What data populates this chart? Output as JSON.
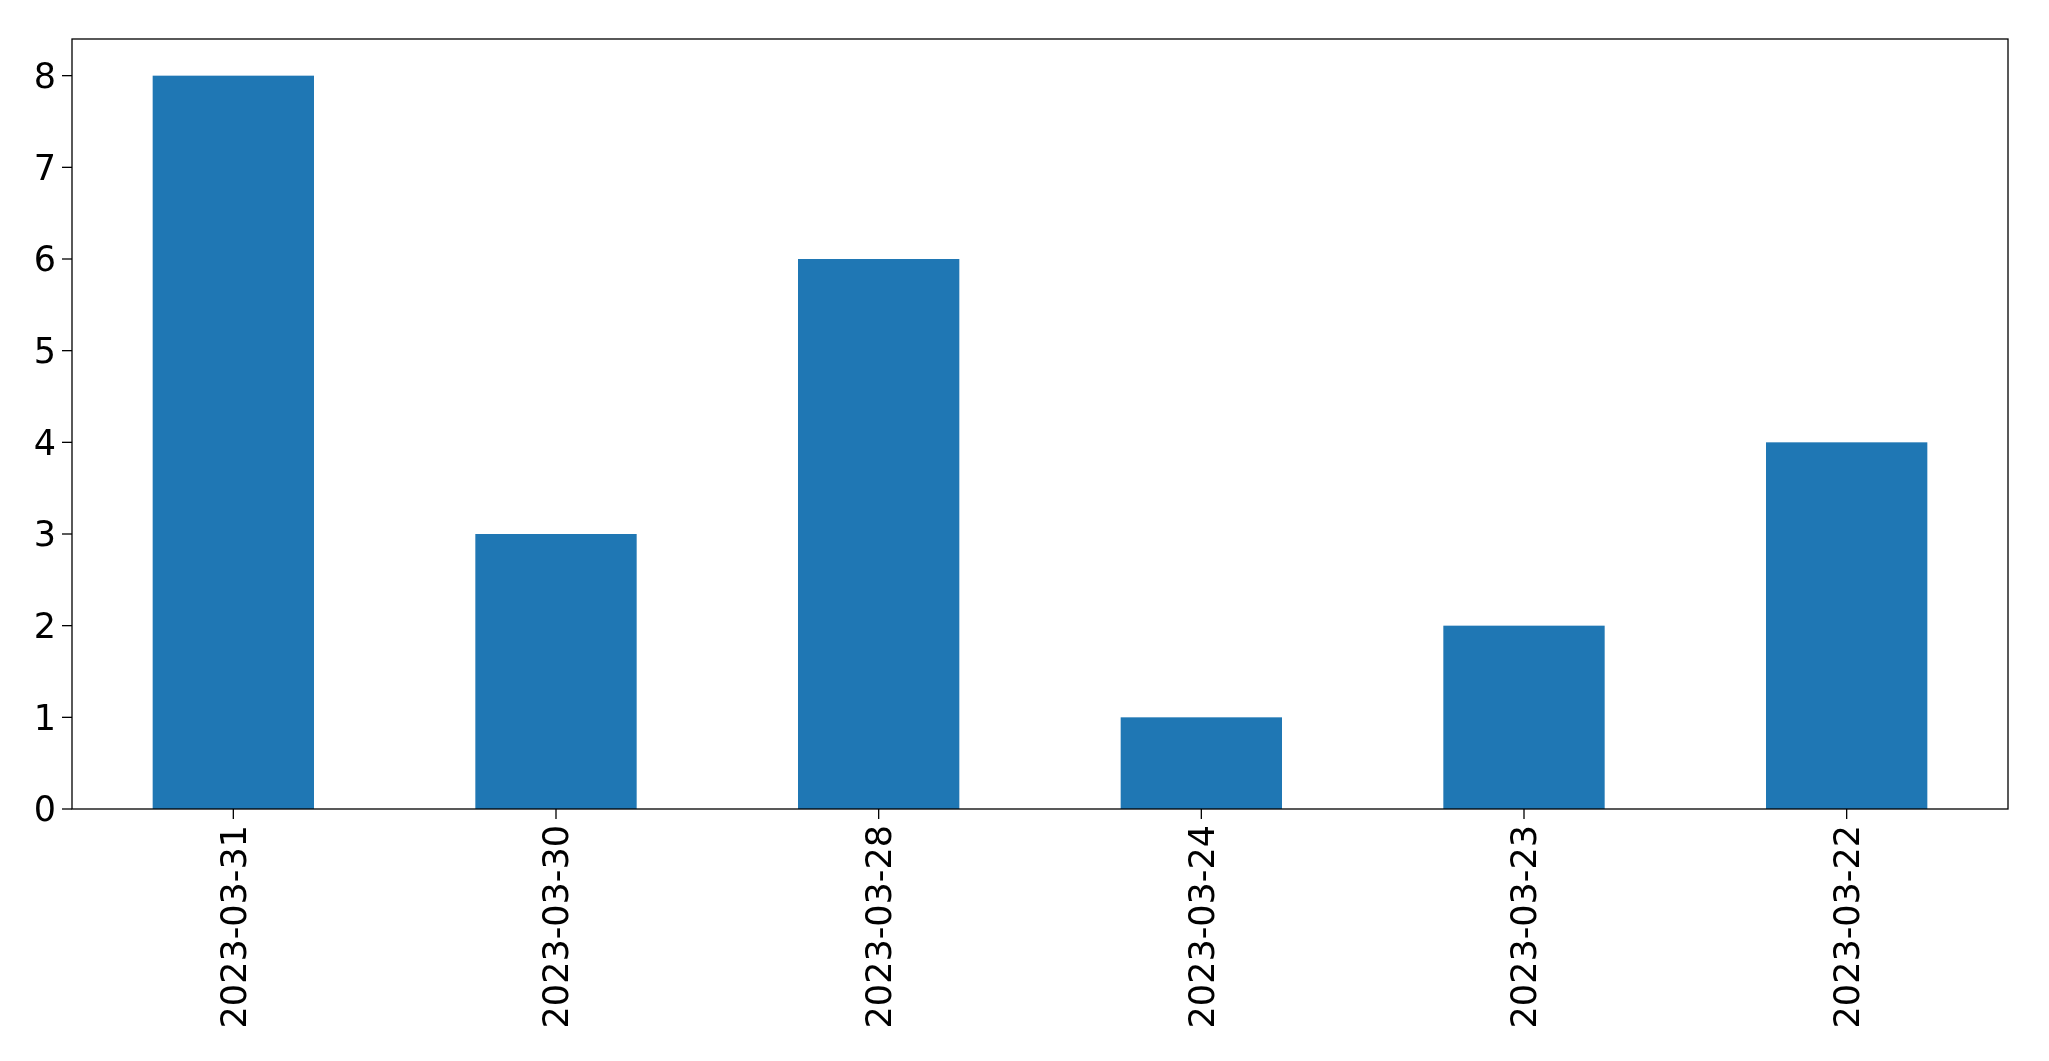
{
  "chart_data": {
    "type": "bar",
    "categories": [
      "2023-03-31",
      "2023-03-30",
      "2023-03-28",
      "2023-03-24",
      "2023-03-23",
      "2023-03-22"
    ],
    "values": [
      8,
      3,
      6,
      1,
      2,
      4
    ],
    "color": "#1f77b4",
    "ylim": [
      0,
      8.4
    ],
    "yticks": [
      0,
      1,
      2,
      3,
      4,
      5,
      6,
      7,
      8
    ]
  }
}
